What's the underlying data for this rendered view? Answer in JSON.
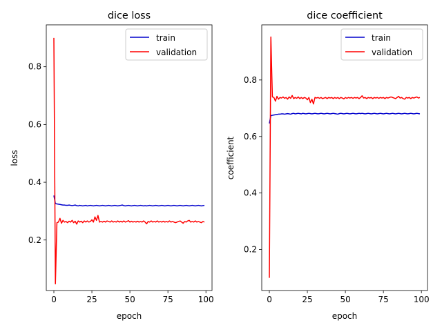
{
  "chart_data": [
    {
      "type": "line",
      "title": "dice loss",
      "xlabel": "epoch",
      "ylabel": "loss",
      "xlim": [
        -5,
        104
      ],
      "ylim": [
        0.025,
        0.945
      ],
      "xticks": [
        0,
        25,
        50,
        75,
        100
      ],
      "yticks": [
        0.2,
        0.4,
        0.6,
        0.8
      ],
      "xtick_labels": [
        "0",
        "25",
        "50",
        "75",
        "100"
      ],
      "ytick_labels": [
        "0.2",
        "0.4",
        "0.6",
        "0.8"
      ],
      "legend": "upper-right",
      "grid": false,
      "series": [
        {
          "name": "train",
          "color": "#0000cc",
          "values": [
            0.354,
            0.326,
            0.325,
            0.324,
            0.323,
            0.322,
            0.321,
            0.321,
            0.32,
            0.32,
            0.321,
            0.32,
            0.319,
            0.32,
            0.321,
            0.319,
            0.318,
            0.32,
            0.319,
            0.318,
            0.319,
            0.32,
            0.318,
            0.319,
            0.32,
            0.319,
            0.318,
            0.319,
            0.32,
            0.319,
            0.318,
            0.319,
            0.32,
            0.319,
            0.318,
            0.319,
            0.32,
            0.319,
            0.318,
            0.319,
            0.32,
            0.319,
            0.318,
            0.319,
            0.32,
            0.321,
            0.319,
            0.318,
            0.319,
            0.32,
            0.319,
            0.318,
            0.319,
            0.32,
            0.319,
            0.318,
            0.319,
            0.32,
            0.319,
            0.318,
            0.319,
            0.318,
            0.319,
            0.32,
            0.319,
            0.318,
            0.319,
            0.32,
            0.319,
            0.318,
            0.319,
            0.32,
            0.319,
            0.318,
            0.319,
            0.32,
            0.319,
            0.318,
            0.319,
            0.32,
            0.319,
            0.318,
            0.319,
            0.32,
            0.319,
            0.318,
            0.319,
            0.32,
            0.319,
            0.318,
            0.319,
            0.32,
            0.319,
            0.318,
            0.319,
            0.32,
            0.319,
            0.318,
            0.319,
            0.32
          ]
        },
        {
          "name": "validation",
          "color": "#ff0000",
          "values": [
            0.9,
            0.048,
            0.26,
            0.262,
            0.275,
            0.258,
            0.268,
            0.262,
            0.264,
            0.26,
            0.265,
            0.262,
            0.268,
            0.26,
            0.265,
            0.255,
            0.266,
            0.262,
            0.265,
            0.26,
            0.266,
            0.262,
            0.266,
            0.262,
            0.264,
            0.27,
            0.262,
            0.28,
            0.268,
            0.285,
            0.262,
            0.264,
            0.262,
            0.265,
            0.262,
            0.266,
            0.264,
            0.262,
            0.266,
            0.262,
            0.264,
            0.262,
            0.266,
            0.262,
            0.265,
            0.262,
            0.266,
            0.262,
            0.264,
            0.267,
            0.262,
            0.265,
            0.262,
            0.264,
            0.262,
            0.265,
            0.262,
            0.264,
            0.262,
            0.266,
            0.262,
            0.256,
            0.264,
            0.262,
            0.266,
            0.262,
            0.264,
            0.262,
            0.266,
            0.262,
            0.264,
            0.262,
            0.265,
            0.262,
            0.264,
            0.262,
            0.266,
            0.262,
            0.264,
            0.262,
            0.26,
            0.262,
            0.264,
            0.266,
            0.262,
            0.258,
            0.264,
            0.262,
            0.266,
            0.268,
            0.262,
            0.264,
            0.262,
            0.266,
            0.262,
            0.264,
            0.262,
            0.26,
            0.264,
            0.262
          ]
        }
      ]
    },
    {
      "type": "line",
      "title": "dice coefficient",
      "xlabel": "epoch",
      "ylabel": "coefficient",
      "xlim": [
        -5,
        104
      ],
      "ylim": [
        0.055,
        0.995
      ],
      "xticks": [
        0,
        25,
        50,
        75,
        100
      ],
      "yticks": [
        0.2,
        0.4,
        0.6,
        0.8
      ],
      "xtick_labels": [
        "0",
        "25",
        "50",
        "75",
        "100"
      ],
      "ytick_labels": [
        "0.2",
        "0.4",
        "0.6",
        "0.8"
      ],
      "legend": "upper-right",
      "grid": false,
      "series": [
        {
          "name": "train",
          "color": "#0000cc",
          "values": [
            0.646,
            0.674,
            0.675,
            0.676,
            0.677,
            0.678,
            0.679,
            0.679,
            0.68,
            0.68,
            0.679,
            0.68,
            0.681,
            0.68,
            0.679,
            0.681,
            0.682,
            0.68,
            0.681,
            0.682,
            0.681,
            0.68,
            0.682,
            0.681,
            0.68,
            0.681,
            0.682,
            0.681,
            0.68,
            0.681,
            0.682,
            0.681,
            0.68,
            0.681,
            0.682,
            0.681,
            0.68,
            0.681,
            0.682,
            0.681,
            0.68,
            0.681,
            0.682,
            0.681,
            0.68,
            0.679,
            0.681,
            0.682,
            0.681,
            0.68,
            0.681,
            0.682,
            0.681,
            0.68,
            0.681,
            0.682,
            0.681,
            0.68,
            0.681,
            0.682,
            0.681,
            0.682,
            0.681,
            0.68,
            0.681,
            0.682,
            0.681,
            0.68,
            0.681,
            0.682,
            0.681,
            0.68,
            0.681,
            0.682,
            0.681,
            0.68,
            0.681,
            0.682,
            0.681,
            0.68,
            0.681,
            0.682,
            0.681,
            0.68,
            0.681,
            0.682,
            0.681,
            0.68,
            0.681,
            0.682,
            0.681,
            0.68,
            0.681,
            0.682,
            0.681,
            0.68,
            0.681,
            0.682,
            0.681,
            0.68
          ]
        },
        {
          "name": "validation",
          "color": "#ff0000",
          "values": [
            0.1,
            0.952,
            0.74,
            0.738,
            0.725,
            0.742,
            0.732,
            0.738,
            0.736,
            0.74,
            0.735,
            0.738,
            0.732,
            0.74,
            0.735,
            0.745,
            0.734,
            0.738,
            0.735,
            0.74,
            0.734,
            0.738,
            0.734,
            0.738,
            0.736,
            0.73,
            0.738,
            0.72,
            0.732,
            0.715,
            0.738,
            0.736,
            0.738,
            0.735,
            0.738,
            0.734,
            0.736,
            0.738,
            0.734,
            0.738,
            0.736,
            0.738,
            0.734,
            0.738,
            0.735,
            0.738,
            0.734,
            0.738,
            0.736,
            0.733,
            0.738,
            0.735,
            0.738,
            0.736,
            0.738,
            0.735,
            0.738,
            0.736,
            0.738,
            0.734,
            0.738,
            0.744,
            0.736,
            0.738,
            0.734,
            0.738,
            0.736,
            0.738,
            0.734,
            0.738,
            0.736,
            0.738,
            0.735,
            0.738,
            0.736,
            0.738,
            0.734,
            0.738,
            0.736,
            0.738,
            0.74,
            0.738,
            0.736,
            0.734,
            0.738,
            0.742,
            0.736,
            0.738,
            0.734,
            0.732,
            0.738,
            0.736,
            0.738,
            0.734,
            0.738,
            0.736,
            0.738,
            0.74,
            0.736,
            0.738
          ]
        }
      ]
    }
  ]
}
